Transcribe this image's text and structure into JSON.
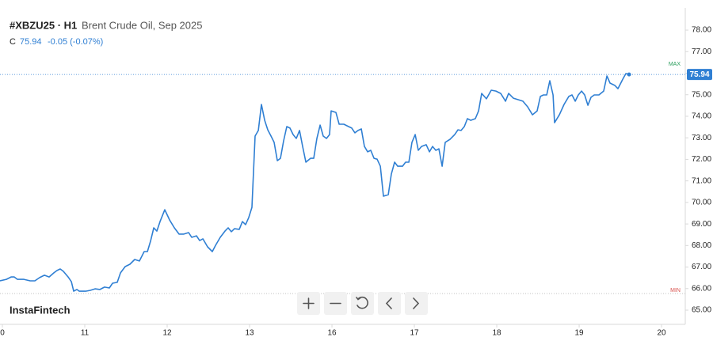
{
  "header": {
    "symbol": "#XBZU25 · H1",
    "name": "Brent Crude Oil, Sep 2025",
    "close_label": "C",
    "close": "75.94",
    "change": "-0.05 (-0.07%)"
  },
  "brand": "InstaFintech",
  "chart_data": {
    "type": "line",
    "color": "#2f7fd3",
    "x": [
      -0.029,
      0.048,
      0.106,
      0.144,
      0.183,
      0.26,
      0.337,
      0.394,
      0.452,
      0.51,
      0.567,
      0.625,
      0.663,
      0.702,
      0.74,
      0.798,
      0.837,
      0.865,
      0.904,
      0.933,
      1.01,
      1.067,
      1.125,
      1.183,
      1.24,
      1.298,
      1.337,
      1.394,
      1.433,
      1.49,
      1.548,
      1.606,
      1.663,
      1.721,
      1.76,
      1.798,
      1.837,
      1.875,
      1.913,
      1.971,
      2.029,
      2.087,
      2.144,
      2.202,
      2.26,
      2.298,
      2.356,
      2.394,
      2.433,
      2.49,
      2.548,
      2.587,
      2.644,
      2.702,
      2.74,
      2.779,
      2.817,
      2.875,
      2.913,
      2.952,
      2.99,
      3.029,
      3.067,
      3.106,
      3.144,
      3.183,
      3.221,
      3.26,
      3.298,
      3.337,
      3.375,
      3.413,
      3.452,
      3.49,
      3.529,
      3.567,
      3.606,
      3.644,
      3.683,
      3.74,
      3.779,
      3.817,
      3.856,
      3.894,
      3.933,
      3.971,
      3.99,
      4.048,
      4.087,
      4.144,
      4.202,
      4.24,
      4.279,
      4.317,
      4.356,
      4.394,
      4.433,
      4.471,
      4.51,
      4.548,
      4.587,
      4.625,
      4.683,
      4.721,
      4.76,
      4.798,
      4.856,
      4.894,
      4.933,
      4.971,
      5.01,
      5.048,
      5.087,
      5.144,
      5.183,
      5.221,
      5.26,
      5.298,
      5.337,
      5.375,
      5.433,
      5.49,
      5.529,
      5.567,
      5.606,
      5.644,
      5.683,
      5.74,
      5.779,
      5.817,
      5.875,
      5.933,
      5.99,
      6.048,
      6.106,
      6.144,
      6.202,
      6.26,
      6.317,
      6.375,
      6.433,
      6.49,
      6.529,
      6.567,
      6.606,
      6.644,
      6.683,
      6.702,
      6.76,
      6.817,
      6.875,
      6.913,
      6.952,
      6.99,
      7.029,
      7.067,
      7.106,
      7.144,
      7.183,
      7.24,
      7.298,
      7.337,
      7.375,
      7.433,
      7.471,
      7.529,
      7.567,
      7.606
    ],
    "values": [
      66.36,
      66.43,
      66.54,
      66.54,
      66.43,
      66.43,
      66.36,
      66.36,
      66.51,
      66.62,
      66.54,
      66.73,
      66.84,
      66.91,
      66.8,
      66.54,
      66.32,
      65.88,
      65.96,
      65.88,
      65.88,
      65.92,
      65.99,
      65.96,
      66.07,
      66.03,
      66.25,
      66.29,
      66.73,
      67.02,
      67.13,
      67.35,
      67.28,
      67.72,
      67.72,
      68.2,
      68.82,
      68.67,
      69.11,
      69.66,
      69.19,
      68.82,
      68.53,
      68.53,
      68.6,
      68.38,
      68.45,
      68.23,
      68.31,
      67.94,
      67.72,
      68.01,
      68.38,
      68.67,
      68.82,
      68.64,
      68.78,
      68.75,
      69.11,
      68.97,
      69.3,
      69.77,
      73.08,
      73.34,
      74.55,
      73.81,
      73.37,
      73.08,
      72.79,
      71.94,
      72.05,
      72.86,
      73.52,
      73.45,
      73.15,
      72.97,
      73.34,
      72.6,
      71.87,
      72.05,
      72.05,
      72.97,
      73.59,
      73.08,
      72.97,
      73.15,
      74.25,
      74.18,
      73.63,
      73.63,
      73.52,
      73.45,
      73.23,
      73.34,
      73.41,
      72.6,
      72.35,
      72.42,
      72.05,
      72.01,
      71.68,
      70.29,
      70.36,
      71.32,
      71.87,
      71.68,
      71.68,
      71.87,
      71.87,
      72.79,
      73.15,
      72.42,
      72.6,
      72.68,
      72.35,
      72.6,
      72.42,
      72.49,
      71.68,
      72.79,
      72.93,
      73.15,
      73.37,
      73.34,
      73.52,
      73.89,
      73.81,
      73.89,
      74.25,
      75.06,
      74.81,
      75.21,
      75.17,
      75.06,
      74.7,
      75.06,
      74.84,
      74.77,
      74.7,
      74.44,
      74.07,
      74.25,
      74.92,
      74.99,
      74.99,
      75.65,
      74.99,
      73.7,
      74.07,
      74.55,
      74.92,
      74.99,
      74.7,
      74.99,
      75.17,
      74.99,
      74.51,
      74.88,
      74.99,
      74.99,
      75.17,
      75.87,
      75.54,
      75.43,
      75.28,
      75.72,
      75.98,
      75.94
    ],
    "last_value": 75.94,
    "max_label": "MAX",
    "min_label": "MIN",
    "min_value": 65.77,
    "xlim": [
      -0.029,
      8.288
    ],
    "ylim": [
      64.34,
      79.03
    ],
    "xticks": [
      {
        "value": 0,
        "label": "0"
      },
      {
        "value": 1,
        "label": "11"
      },
      {
        "value": 2,
        "label": "12"
      },
      {
        "value": 3,
        "label": "13"
      },
      {
        "value": 4,
        "label": "16"
      },
      {
        "value": 5,
        "label": "17"
      },
      {
        "value": 6,
        "label": "18"
      },
      {
        "value": 7,
        "label": "19"
      },
      {
        "value": 8,
        "label": "20"
      }
    ],
    "yticks": [
      {
        "value": 65,
        "label": "65.00"
      },
      {
        "value": 66,
        "label": "66.00"
      },
      {
        "value": 67,
        "label": "67.00"
      },
      {
        "value": 68,
        "label": "68.00"
      },
      {
        "value": 69,
        "label": "69.00"
      },
      {
        "value": 70,
        "label": "70.00"
      },
      {
        "value": 71,
        "label": "71.00"
      },
      {
        "value": 72,
        "label": "72.00"
      },
      {
        "value": 73,
        "label": "73.00"
      },
      {
        "value": 74,
        "label": "74.00"
      },
      {
        "value": 75,
        "label": "75.00"
      },
      {
        "value": 76,
        "label": "76.00"
      },
      {
        "value": 77,
        "label": "77.00"
      },
      {
        "value": 78,
        "label": "78.00"
      }
    ]
  }
}
